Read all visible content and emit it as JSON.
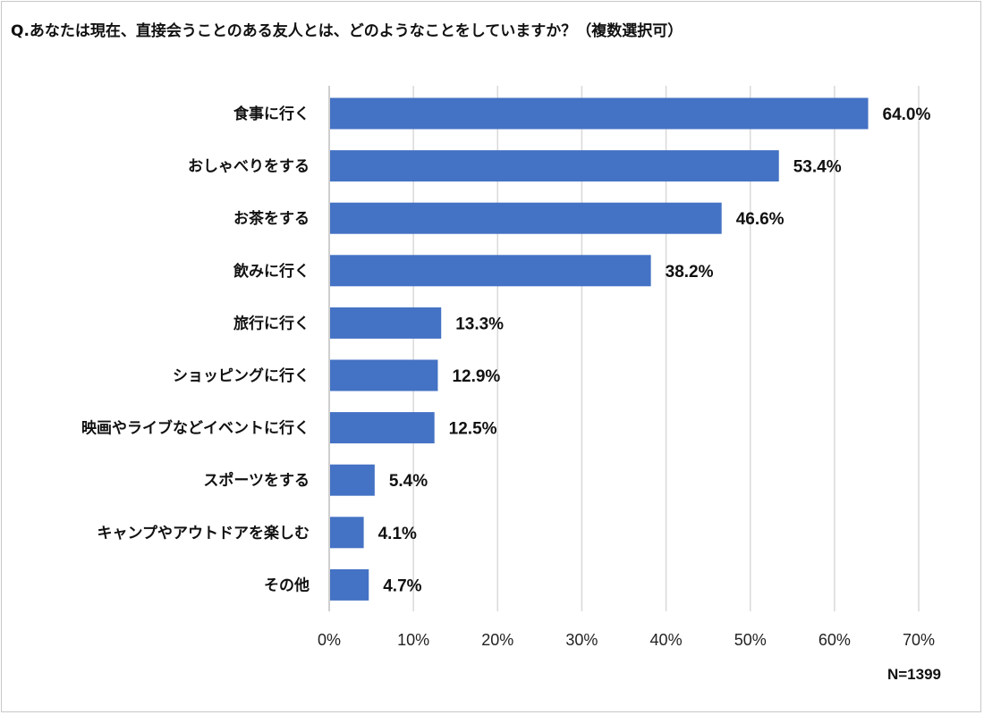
{
  "title": "Q.あなたは現在、直接会うことのある友人とは、どのようなことをしていますか？（複数選択可）",
  "note": "N=1399",
  "colors": {
    "bar": "#4472C4",
    "grid": "#d9d9d9"
  },
  "chart_data": {
    "type": "bar",
    "orientation": "horizontal",
    "title": "Q.あなたは現在、直接会うことのある友人とは、どのようなことをしていますか？（複数選択可）",
    "categories": [
      "食事に行く",
      "おしゃべりをする",
      "お茶をする",
      "飲みに行く",
      "旅行に行く",
      "ショッピングに行く",
      "映画やライブなどイベントに行く",
      "スポーツをする",
      "キャンプやアウトドアを楽しむ",
      "その他"
    ],
    "values": [
      64.0,
      53.4,
      46.6,
      38.2,
      13.3,
      12.9,
      12.5,
      5.4,
      4.1,
      4.7
    ],
    "value_labels": [
      "64.0%",
      "53.4%",
      "46.6%",
      "38.2%",
      "13.3%",
      "12.9%",
      "12.5%",
      "5.4%",
      "4.1%",
      "4.7%"
    ],
    "xlim": [
      0,
      70
    ],
    "xticks": [
      0,
      10,
      20,
      30,
      40,
      50,
      60,
      70
    ],
    "xtick_labels": [
      "0%",
      "10%",
      "20%",
      "30%",
      "40%",
      "50%",
      "60%",
      "70%"
    ],
    "grid": true
  }
}
